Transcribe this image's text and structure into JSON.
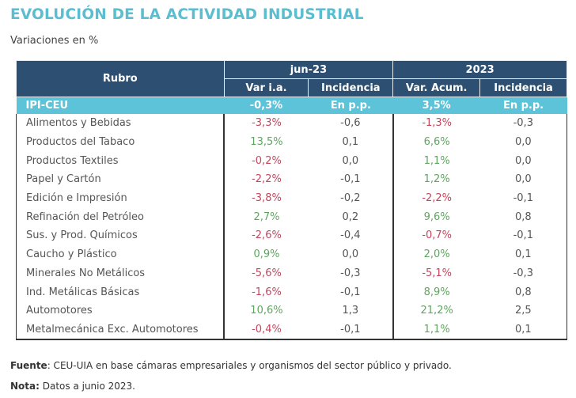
{
  "title": "EVOLUCIÓN DE LA ACTIVIDAD INDUSTRIAL",
  "subtitle": "Variaciones en %",
  "table": {
    "header": {
      "rubro": "Rubro",
      "group1": "jun-23",
      "group2": "2023",
      "col1": "Var i.a.",
      "col2": "Incidencia",
      "col3": "Var. Acum.",
      "col4": "Incidencia"
    },
    "total": {
      "name": "IPI-CEU",
      "v1": "-0,3%",
      "v2": "En p.p.",
      "v3": "3,5%",
      "v4": "En p.p."
    },
    "rows": [
      {
        "name": "Alimentos y Bebidas",
        "v1": "-3,3%",
        "v2": "-0,6",
        "v3": "-1,3%",
        "v4": "-0,3"
      },
      {
        "name": "Productos del Tabaco",
        "v1": "13,5%",
        "v2": "0,1",
        "v3": "6,6%",
        "v4": "0,0"
      },
      {
        "name": "Productos Textiles",
        "v1": "-0,2%",
        "v2": "0,0",
        "v3": "1,1%",
        "v4": "0,0"
      },
      {
        "name": "Papel y Cartón",
        "v1": "-2,2%",
        "v2": "-0,1",
        "v3": "1,2%",
        "v4": "0,0"
      },
      {
        "name": "Edición e Impresión",
        "v1": "-3,8%",
        "v2": "-0,2",
        "v3": "-2,2%",
        "v4": "-0,1"
      },
      {
        "name": "Refinación del Petróleo",
        "v1": "2,7%",
        "v2": "0,2",
        "v3": "9,6%",
        "v4": "0,8"
      },
      {
        "name": "Sus. y Prod. Químicos",
        "v1": "-2,6%",
        "v2": "-0,4",
        "v3": "-0,7%",
        "v4": "-0,1"
      },
      {
        "name": "Caucho y Plástico",
        "v1": "0,9%",
        "v2": "0,0",
        "v3": "2,0%",
        "v4": "0,1"
      },
      {
        "name": "Minerales No Metálicos",
        "v1": "-5,6%",
        "v2": "-0,3",
        "v3": "-5,1%",
        "v4": "-0,3"
      },
      {
        "name": "Ind. Metálicas Básicas",
        "v1": "-1,6%",
        "v2": "-0,1",
        "v3": "8,9%",
        "v4": "0,8"
      },
      {
        "name": "Automotores",
        "v1": "10,6%",
        "v2": "1,3",
        "v3": "21,2%",
        "v4": "2,5"
      },
      {
        "name": "Metalmecánica Exc. Automotores",
        "v1": "-0,4%",
        "v2": "-0,1",
        "v3": "1,1%",
        "v4": "0,1"
      }
    ]
  },
  "footer": {
    "source_label": "Fuente",
    "source_text": ": CEU-UIA en base cámaras empresariales y organismos del sector público y privado.",
    "note_label": "Nota:",
    "note_text": " Datos a junio 2023."
  },
  "colors": {
    "title": "#5bbdd0",
    "header": "#2c4f72",
    "total_row": "#5cc3d8",
    "negative": "#c4455e",
    "positive": "#5fa55f"
  }
}
